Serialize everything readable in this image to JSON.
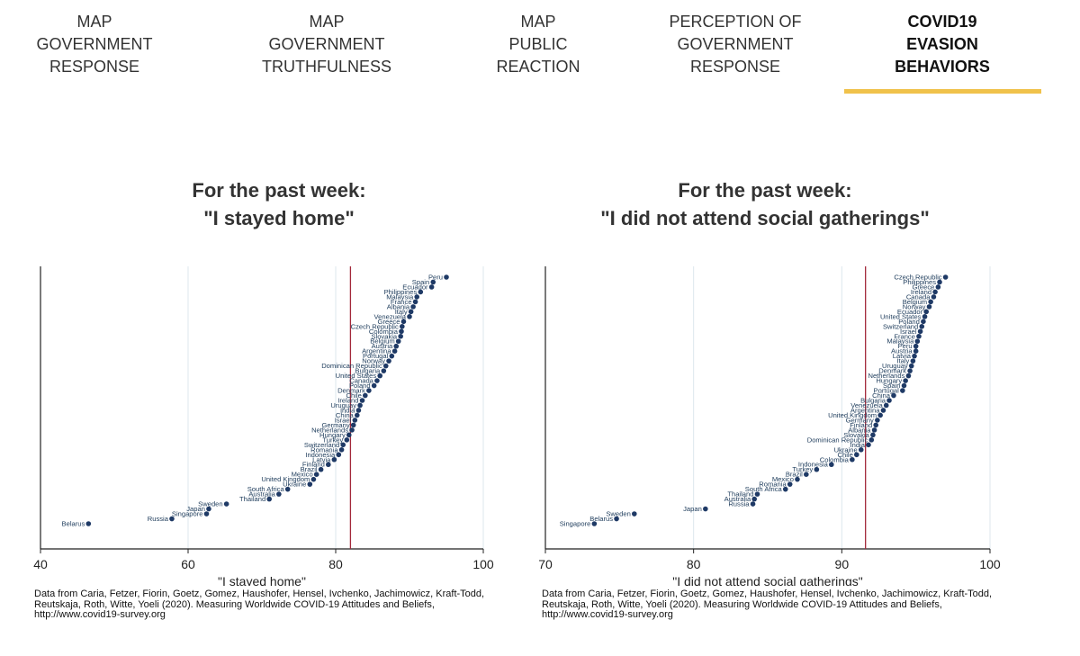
{
  "nav": {
    "items": [
      {
        "lines": [
          "MAP",
          "GOVERNMENT",
          "RESPONSE"
        ],
        "active": false
      },
      {
        "lines": [
          "MAP",
          "GOVERNMENT",
          "TRUTHFULNESS"
        ],
        "active": false
      },
      {
        "lines": [
          "MAP",
          "PUBLIC",
          "REACTION"
        ],
        "active": false
      },
      {
        "lines": [
          "PERCEPTION OF",
          "GOVERNMENT",
          "RESPONSE"
        ],
        "active": false
      },
      {
        "lines": [
          "COVID19",
          "EVASION",
          "BEHAVIORS"
        ],
        "active": true
      }
    ],
    "accent_color": "#f0c24b"
  },
  "colors": {
    "dots": "#1f3a66",
    "label": "#23405f",
    "refline": "#a3283a",
    "grid": "#dde7ee",
    "axis": "#222222"
  },
  "panels": [
    {
      "title_lines": [
        "For the past week:",
        "\"I stayed home\""
      ],
      "source_lines": [
        "Data from Caria, Fetzer, Fiorin, Goetz, Gomez, Haushofer, Hensel, Ivchenko, Jachimowicz, Kraft-Todd,",
        "Reutskaja, Roth, Witte, Yoeli (2020). Measuring Worldwide COVID-19 Attitudes and Beliefs,",
        "http://www.covid19-survey.org"
      ]
    },
    {
      "title_lines": [
        "For the past week:",
        "\"I did not attend social gatherings\""
      ],
      "source_lines": [
        "Data from Caria, Fetzer, Fiorin, Goetz, Gomez, Haushofer, Hensel, Ivchenko, Jachimowicz, Kraft-Todd,",
        "Reutskaja, Roth, Witte, Yoeli (2020). Measuring Worldwide COVID-19 Attitudes and Beliefs,",
        "http://www.covid19-survey.org"
      ]
    }
  ],
  "chart_data": [
    {
      "type": "scatter",
      "xlabel": "\"I stayed home\"",
      "xlim": [
        40,
        100
      ],
      "xticks": [
        40,
        60,
        80,
        100
      ],
      "grid": true,
      "reference_line_x": 82,
      "points": [
        {
          "label": "Peru",
          "x": 95.0
        },
        {
          "label": "Spain",
          "x": 93.2
        },
        {
          "label": "Ecuador",
          "x": 93.0
        },
        {
          "label": "Philippines",
          "x": 91.5
        },
        {
          "label": "Malaysia",
          "x": 91.0
        },
        {
          "label": "France",
          "x": 90.8
        },
        {
          "label": "Albania",
          "x": 90.5
        },
        {
          "label": "Italy",
          "x": 90.2
        },
        {
          "label": "Venezuela",
          "x": 90.0
        },
        {
          "label": "Greece",
          "x": 89.2
        },
        {
          "label": "Czech Republic",
          "x": 89.0
        },
        {
          "label": "Colombia",
          "x": 88.9
        },
        {
          "label": "Slovakia",
          "x": 88.8
        },
        {
          "label": "Belgium",
          "x": 88.5
        },
        {
          "label": "Austria",
          "x": 88.2
        },
        {
          "label": "Argentina",
          "x": 88.0
        },
        {
          "label": "Portugal",
          "x": 87.6
        },
        {
          "label": "Norway",
          "x": 87.2
        },
        {
          "label": "Dominican Republic",
          "x": 86.8
        },
        {
          "label": "Bulgaria",
          "x": 86.5
        },
        {
          "label": "United States",
          "x": 86.0
        },
        {
          "label": "Canada",
          "x": 85.6
        },
        {
          "label": "Poland",
          "x": 85.2
        },
        {
          "label": "Denmark",
          "x": 84.5
        },
        {
          "label": "Chile",
          "x": 84.0
        },
        {
          "label": "Ireland",
          "x": 83.6
        },
        {
          "label": "Uruguay",
          "x": 83.3
        },
        {
          "label": "India",
          "x": 83.1
        },
        {
          "label": "China",
          "x": 82.9
        },
        {
          "label": "Israel",
          "x": 82.6
        },
        {
          "label": "Germany",
          "x": 82.4
        },
        {
          "label": "Netherlands",
          "x": 82.2
        },
        {
          "label": "Hungary",
          "x": 81.8
        },
        {
          "label": "Turkey",
          "x": 81.5
        },
        {
          "label": "Switzerland",
          "x": 81.0
        },
        {
          "label": "Romania",
          "x": 80.8
        },
        {
          "label": "Indonesia",
          "x": 80.4
        },
        {
          "label": "Latvia",
          "x": 79.8
        },
        {
          "label": "Finland",
          "x": 79.0
        },
        {
          "label": "Brazil",
          "x": 78.0
        },
        {
          "label": "Mexico",
          "x": 77.4
        },
        {
          "label": "United Kingdom",
          "x": 77.0
        },
        {
          "label": "Ukraine",
          "x": 76.5
        },
        {
          "label": "South Africa",
          "x": 73.5
        },
        {
          "label": "Australia",
          "x": 72.3
        },
        {
          "label": "Thailand",
          "x": 71.0
        },
        {
          "label": "Sweden",
          "x": 65.2
        },
        {
          "label": "Japan",
          "x": 62.8
        },
        {
          "label": "Singapore",
          "x": 62.5
        },
        {
          "label": "Russia",
          "x": 57.8
        },
        {
          "label": "Belarus",
          "x": 46.5
        }
      ]
    },
    {
      "type": "scatter",
      "xlabel": "\"I did not attend social gatherings\"",
      "xlim": [
        70,
        100
      ],
      "xticks": [
        70,
        80,
        90,
        100
      ],
      "grid": true,
      "reference_line_x": 91.6,
      "points": [
        {
          "label": "Czech Republic",
          "x": 97.0
        },
        {
          "label": "Philippines",
          "x": 96.6
        },
        {
          "label": "Greece",
          "x": 96.5
        },
        {
          "label": "Ireland",
          "x": 96.3
        },
        {
          "label": "Canada",
          "x": 96.2
        },
        {
          "label": "Belgium",
          "x": 96.0
        },
        {
          "label": "Norway",
          "x": 95.9
        },
        {
          "label": "Ecuador",
          "x": 95.7
        },
        {
          "label": "United States",
          "x": 95.6
        },
        {
          "label": "Poland",
          "x": 95.5
        },
        {
          "label": "Switzerland",
          "x": 95.4
        },
        {
          "label": "Israel",
          "x": 95.3
        },
        {
          "label": "France",
          "x": 95.2
        },
        {
          "label": "Malaysia",
          "x": 95.1
        },
        {
          "label": "Peru",
          "x": 95.0
        },
        {
          "label": "Austria",
          "x": 95.0
        },
        {
          "label": "Latvia",
          "x": 94.9
        },
        {
          "label": "Italy",
          "x": 94.8
        },
        {
          "label": "Uruguay",
          "x": 94.7
        },
        {
          "label": "Denmark",
          "x": 94.6
        },
        {
          "label": "Netherlands",
          "x": 94.5
        },
        {
          "label": "Hungary",
          "x": 94.3
        },
        {
          "label": "Spain",
          "x": 94.2
        },
        {
          "label": "Portugal",
          "x": 94.1
        },
        {
          "label": "China",
          "x": 93.5
        },
        {
          "label": "Bulgaria",
          "x": 93.2
        },
        {
          "label": "Venezuela",
          "x": 93.0
        },
        {
          "label": "Argentina",
          "x": 92.8
        },
        {
          "label": "United Kingdom",
          "x": 92.6
        },
        {
          "label": "Germany",
          "x": 92.4
        },
        {
          "label": "Finland",
          "x": 92.3
        },
        {
          "label": "Albania",
          "x": 92.2
        },
        {
          "label": "Slovakia",
          "x": 92.1
        },
        {
          "label": "Dominican Republic",
          "x": 92.0
        },
        {
          "label": "India",
          "x": 91.8
        },
        {
          "label": "Ukraine",
          "x": 91.3
        },
        {
          "label": "Chile",
          "x": 91.0
        },
        {
          "label": "Colombia",
          "x": 90.7
        },
        {
          "label": "Indonesia",
          "x": 89.3
        },
        {
          "label": "Turkey",
          "x": 88.3
        },
        {
          "label": "Brazil",
          "x": 87.6
        },
        {
          "label": "Mexico",
          "x": 87.0
        },
        {
          "label": "Romania",
          "x": 86.5
        },
        {
          "label": "South Africa",
          "x": 86.2
        },
        {
          "label": "Thailand",
          "x": 84.3
        },
        {
          "label": "Australia",
          "x": 84.1
        },
        {
          "label": "Russia",
          "x": 84.0
        },
        {
          "label": "Japan",
          "x": 80.8
        },
        {
          "label": "Sweden",
          "x": 76.0
        },
        {
          "label": "Belarus",
          "x": 74.8
        },
        {
          "label": "Singapore",
          "x": 73.3
        }
      ]
    }
  ]
}
